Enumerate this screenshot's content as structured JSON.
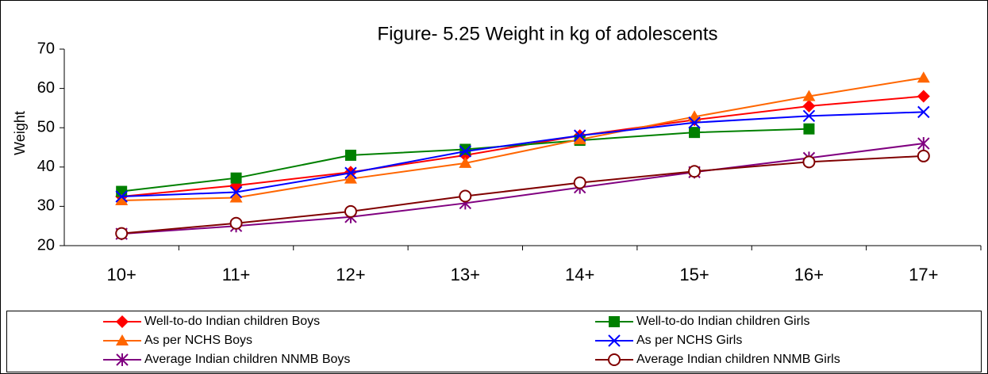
{
  "chart_data": {
    "type": "line",
    "title": "Figure-  5.25 Weight in kg of adolescents",
    "y_label": "Weight",
    "categories": [
      "10+",
      "11+",
      "12+",
      "13+",
      "14+",
      "15+",
      "16+",
      "17+"
    ],
    "ylim": [
      20,
      70
    ],
    "yticks": [
      20,
      30,
      40,
      50,
      60,
      70
    ],
    "legend": "bottom",
    "series": [
      {
        "name": "Well-to-do Indian children Boys",
        "color": "#ff0000",
        "marker": "diamond",
        "values": [
          32.5,
          35.3,
          38.7,
          43,
          48,
          52,
          55.5,
          58
        ]
      },
      {
        "name": "Well-to-do Indian children Girls",
        "color": "#008000",
        "marker": "square",
        "values": [
          33.8,
          37.2,
          43,
          44.5,
          46.8,
          48.8,
          49.7,
          null
        ]
      },
      {
        "name": "As per NCHS Boys",
        "color": "#ff6600",
        "marker": "triangle",
        "values": [
          31.5,
          32.2,
          37,
          41,
          47,
          52.8,
          58,
          62.7
        ]
      },
      {
        "name": "As per NCHS Girls",
        "color": "#0000ff",
        "marker": "x",
        "values": [
          32.5,
          33.6,
          38.5,
          44,
          48,
          51.3,
          53,
          54
        ]
      },
      {
        "name": "Average Indian children NNMB Boys",
        "color": "#800080",
        "marker": "star",
        "values": [
          23,
          25,
          27.3,
          30.8,
          34.8,
          38.7,
          42.3,
          46
        ]
      },
      {
        "name": "Average Indian children NNMB Girls",
        "color": "#800000",
        "marker": "circle",
        "values": [
          23.1,
          25.7,
          28.7,
          32.6,
          36,
          38.9,
          41.3,
          42.8
        ]
      }
    ]
  }
}
